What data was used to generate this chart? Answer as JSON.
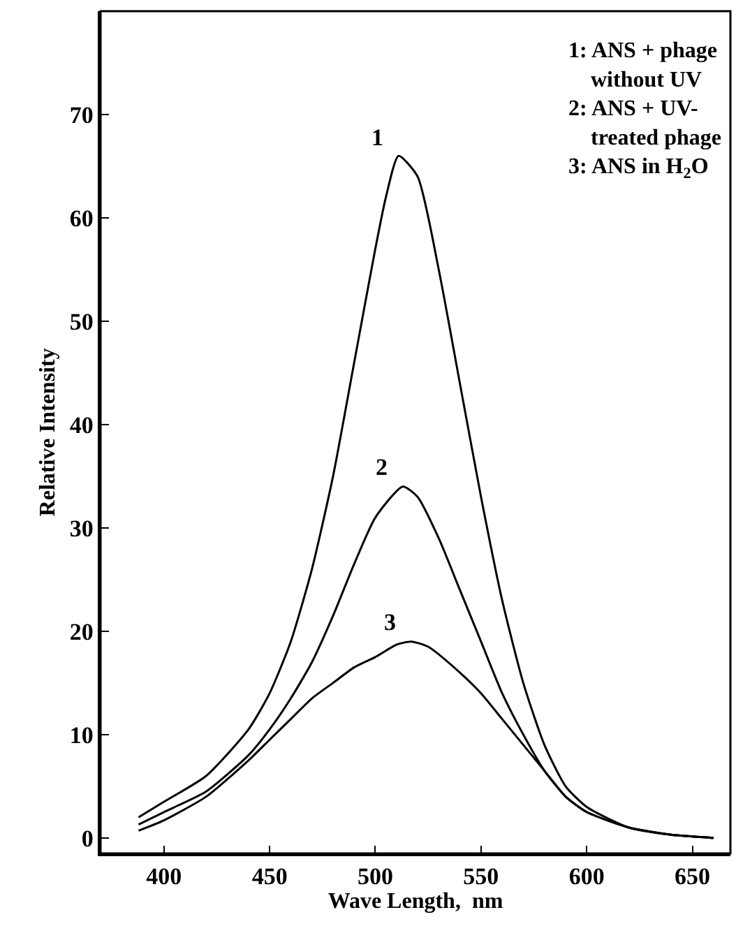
{
  "chart_data": {
    "type": "line",
    "xlabel": "Wave Length,  nm",
    "ylabel": "Relative Intensity",
    "xlim": [
      370,
      668
    ],
    "ylim": [
      -1.5,
      80
    ],
    "xticks": [
      400,
      450,
      500,
      550,
      600,
      650
    ],
    "yticks": [
      0,
      10,
      20,
      30,
      40,
      50,
      60,
      70
    ],
    "grid": false,
    "legend": false,
    "marker": "none",
    "line_style": "solid",
    "series": [
      {
        "name": "1",
        "color": "#000000",
        "x": [
          388,
          400,
          420,
          440,
          450,
          460,
          470,
          480,
          490,
          500,
          505,
          511,
          520,
          530,
          540,
          550,
          560,
          570,
          580,
          590,
          600,
          620,
          640,
          660
        ],
        "values": [
          2,
          3.5,
          6,
          10.5,
          14,
          19,
          26,
          35,
          46,
          57,
          62,
          66,
          64,
          55,
          44,
          33,
          23,
          15,
          9,
          5,
          3,
          1,
          0.3,
          0
        ]
      },
      {
        "name": "2",
        "color": "#000000",
        "x": [
          388,
          400,
          420,
          440,
          450,
          460,
          470,
          480,
          490,
          500,
          513,
          520,
          530,
          540,
          550,
          560,
          570,
          580,
          590,
          600,
          620,
          640,
          660
        ],
        "values": [
          1.3,
          2.5,
          4.5,
          8,
          10.5,
          13.5,
          17,
          21.5,
          26.5,
          31,
          34,
          33,
          29,
          24,
          19,
          14,
          10,
          6.5,
          4,
          2.5,
          1,
          0.3,
          0
        ]
      },
      {
        "name": "3",
        "color": "#000000",
        "x": [
          388,
          400,
          420,
          440,
          450,
          460,
          470,
          480,
          490,
          500,
          510,
          517,
          525,
          540,
          550,
          560,
          570,
          580,
          590,
          600,
          620,
          640,
          660
        ],
        "values": [
          0.7,
          1.7,
          4,
          7.5,
          9.5,
          11.5,
          13.5,
          15,
          16.5,
          17.5,
          18.7,
          19,
          18.5,
          16,
          14,
          11.5,
          9,
          6.5,
          4,
          2.5,
          1,
          0.3,
          0
        ]
      }
    ],
    "annotations": [
      "1: ANS + phage\n    without UV\n2: ANS + UV-\n    treated phage\n3: ANS in H$_{2}$O"
    ]
  }
}
